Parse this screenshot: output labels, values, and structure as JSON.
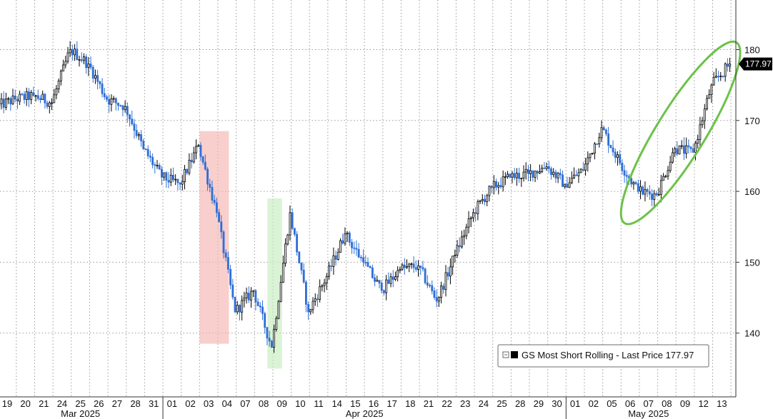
{
  "chart_data": {
    "type": "line",
    "style": "candlestick",
    "title": "",
    "series": [
      {
        "name": "GS Most Short Rolling",
        "last_price_label": "Last Price",
        "last_price": "177.97"
      }
    ],
    "legend_text": "GS Most Short Rolling - Last Price 177.97",
    "legend_position": "bottom-right",
    "price_tag": "177.97",
    "y_axis": {
      "side": "right",
      "ylim": [
        131,
        187
      ],
      "ticks": [
        "180",
        "170",
        "160",
        "150",
        "140"
      ]
    },
    "x_axis": {
      "day_labels": [
        "19",
        "20",
        "21",
        "24",
        "25",
        "26",
        "27",
        "28",
        "31",
        "01",
        "02",
        "03",
        "04",
        "07",
        "08",
        "09",
        "10",
        "11",
        "14",
        "15",
        "16",
        "17",
        "18",
        "21",
        "22",
        "23",
        "24",
        "25",
        "28",
        "29",
        "30",
        "01",
        "02",
        "05",
        "06",
        "07",
        "08",
        "09",
        "12",
        "13"
      ],
      "months": [
        {
          "label": "Mar 2025",
          "first_day": 0,
          "last_day": 8
        },
        {
          "label": "Apr 2025",
          "first_day": 9,
          "last_day": 30
        },
        {
          "label": "May 2025",
          "first_day": 31,
          "last_day": 39
        }
      ],
      "month_boundaries": [
        8.5,
        30.5
      ]
    },
    "grid": true,
    "daily_close": [
      {
        "day": "19",
        "close": 173.0
      },
      {
        "day": "20",
        "close": 173.5
      },
      {
        "day": "21",
        "close": 172.5
      },
      {
        "day": "24",
        "close": 180.0
      },
      {
        "day": "25",
        "close": 178.0
      },
      {
        "day": "26",
        "close": 173.0
      },
      {
        "day": "27",
        "close": 172.0
      },
      {
        "day": "28",
        "close": 166.0
      },
      {
        "day": "31",
        "close": 162.0
      },
      {
        "day": "01",
        "close": 161.0
      },
      {
        "day": "02",
        "close": 166.5
      },
      {
        "day": "03",
        "close": 157.0
      },
      {
        "day": "04",
        "close": 143.0
      },
      {
        "day": "07",
        "close": 146.0
      },
      {
        "day": "08",
        "close": 138.0
      },
      {
        "day": "09",
        "close": 157.0
      },
      {
        "day": "10",
        "close": 143.0
      },
      {
        "day": "11",
        "close": 148.0
      },
      {
        "day": "14",
        "close": 154.0
      },
      {
        "day": "15",
        "close": 150.0
      },
      {
        "day": "16",
        "close": 146.0
      },
      {
        "day": "17",
        "close": 149.0
      },
      {
        "day": "18",
        "close": 149.5
      },
      {
        "day": "21",
        "close": 144.5
      },
      {
        "day": "22",
        "close": 151.0
      },
      {
        "day": "23",
        "close": 157.0
      },
      {
        "day": "24",
        "close": 160.5
      },
      {
        "day": "25",
        "close": 162.0
      },
      {
        "day": "28",
        "close": 162.5
      },
      {
        "day": "29",
        "close": 163.5
      },
      {
        "day": "30",
        "close": 161.0
      },
      {
        "day": "01",
        "close": 163.0
      },
      {
        "day": "02",
        "close": 169.0
      },
      {
        "day": "05",
        "close": 164.0
      },
      {
        "day": "06",
        "close": 160.0
      },
      {
        "day": "07",
        "close": 159.5
      },
      {
        "day": "08",
        "close": 166.0
      },
      {
        "day": "09",
        "close": 165.5
      },
      {
        "day": "12",
        "close": 175.0
      },
      {
        "day": "13",
        "close": 177.97
      }
    ],
    "annotations": [
      {
        "shape": "rect",
        "color": "#f4b6b0",
        "x_from_day": 11.0,
        "x_to_day": 12.6,
        "y_from": 138.5,
        "y_to": 168.5
      },
      {
        "shape": "rect",
        "color": "#c6ecbf",
        "x_from_day": 14.7,
        "x_to_day": 15.5,
        "y_from": 135.0,
        "y_to": 159.0
      },
      {
        "shape": "ellipse",
        "color": "#6cc24a",
        "x_from_day": 34.2,
        "x_to_day": 40.3,
        "y_from": 155.5,
        "y_to": 181.0
      }
    ],
    "colors": {
      "up": "#000000",
      "down": "#2f6fd6",
      "grid": "#9a9a9a",
      "price_tag_bg": "#000000"
    }
  }
}
